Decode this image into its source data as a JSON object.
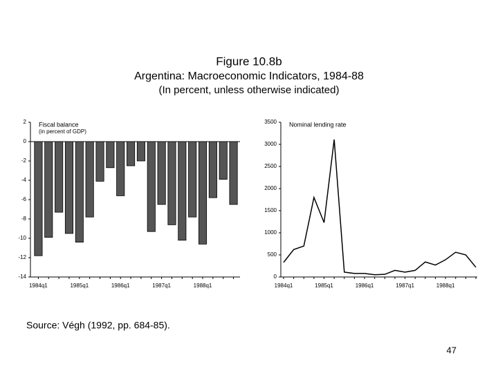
{
  "header": {
    "title": "Figure 10.8b",
    "subtitle": "Argentina: Macroeconomic Indicators, 1984-88",
    "note": "(In percent, unless otherwise indicated)"
  },
  "chart_data": [
    {
      "type": "bar",
      "title": "Fiscal balance",
      "subtitle": "(in percent of GDP)",
      "categories": [
        "1984q1",
        null,
        null,
        null,
        "1985q1",
        null,
        null,
        null,
        "1986q1",
        null,
        null,
        null,
        "1987q1",
        null,
        null,
        null,
        "1988q1",
        null,
        null,
        null
      ],
      "values": [
        -11.8,
        -9.9,
        -7.3,
        -9.5,
        -10.4,
        -7.8,
        -4.1,
        -2.7,
        -5.6,
        -2.5,
        -2.0,
        -9.3,
        -6.5,
        -8.6,
        -10.2,
        -7.8,
        -10.6,
        -5.8,
        -3.9,
        -6.5
      ],
      "color": "#555555",
      "ylim": [
        -14,
        2
      ],
      "yticks": [
        2,
        0,
        -2,
        -4,
        -6,
        -8,
        -10,
        -12,
        -14
      ]
    },
    {
      "type": "line",
      "title": "Nominal lending rate",
      "categories": [
        "1984q1",
        null,
        null,
        null,
        "1985q1",
        null,
        null,
        null,
        "1986q1",
        null,
        null,
        null,
        "1987q1",
        null,
        null,
        null,
        "1988q1",
        null,
        null,
        null
      ],
      "values": [
        330,
        620,
        700,
        1800,
        1230,
        3110,
        110,
        80,
        80,
        50,
        60,
        150,
        110,
        150,
        340,
        270,
        390,
        560,
        500,
        220
      ],
      "color": "#000000",
      "ylim": [
        0,
        3500
      ],
      "yticks": [
        3500,
        3000,
        2500,
        2000,
        1500,
        1000,
        500,
        0
      ]
    }
  ],
  "footer": {
    "source": "Source: Végh (1992, pp. 684-85).",
    "page": "47"
  }
}
